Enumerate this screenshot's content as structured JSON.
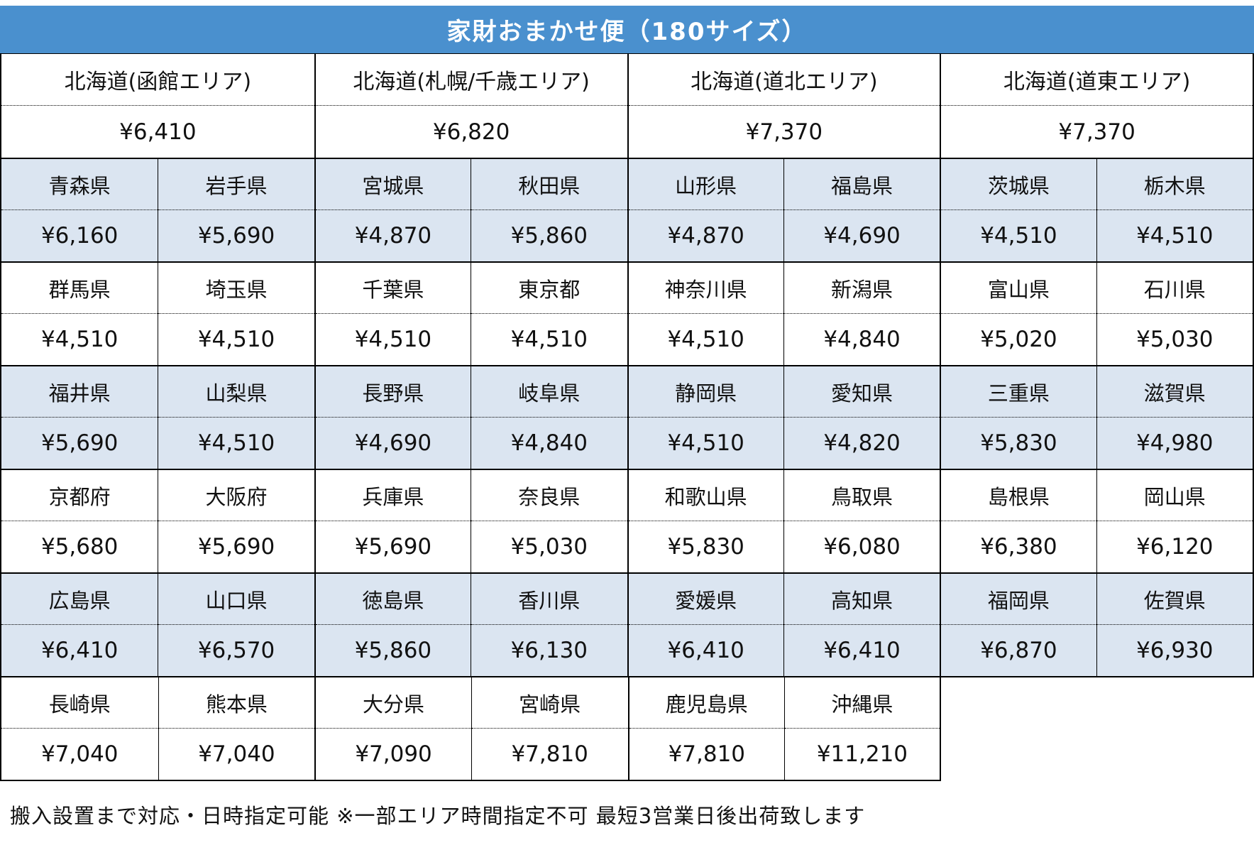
{
  "title": "家財おまかせ便（180サイズ）",
  "hokkaido_row": [
    {
      "name": "北海道(函館エリア)",
      "price": "¥6,410"
    },
    {
      "name": "北海道(札幌/千歳エリア)",
      "price": "¥6,820"
    },
    {
      "name": "北海道(道北エリア)",
      "price": "¥7,370"
    },
    {
      "name": "北海道(道東エリア)",
      "price": "¥7,370"
    }
  ],
  "bands": [
    {
      "shaded": true,
      "cells": [
        {
          "name": "青森県",
          "price": "¥6,160"
        },
        {
          "name": "岩手県",
          "price": "¥5,690"
        },
        {
          "name": "宮城県",
          "price": "¥4,870"
        },
        {
          "name": "秋田県",
          "price": "¥5,860"
        },
        {
          "name": "山形県",
          "price": "¥4,870"
        },
        {
          "name": "福島県",
          "price": "¥4,690"
        },
        {
          "name": "茨城県",
          "price": "¥4,510"
        },
        {
          "name": "栃木県",
          "price": "¥4,510"
        }
      ]
    },
    {
      "shaded": false,
      "cells": [
        {
          "name": "群馬県",
          "price": "¥4,510"
        },
        {
          "name": "埼玉県",
          "price": "¥4,510"
        },
        {
          "name": "千葉県",
          "price": "¥4,510"
        },
        {
          "name": "東京都",
          "price": "¥4,510"
        },
        {
          "name": "神奈川県",
          "price": "¥4,510"
        },
        {
          "name": "新潟県",
          "price": "¥4,840"
        },
        {
          "name": "富山県",
          "price": "¥5,020"
        },
        {
          "name": "石川県",
          "price": "¥5,030"
        }
      ]
    },
    {
      "shaded": true,
      "cells": [
        {
          "name": "福井県",
          "price": "¥5,690"
        },
        {
          "name": "山梨県",
          "price": "¥4,510"
        },
        {
          "name": "長野県",
          "price": "¥4,690"
        },
        {
          "name": "岐阜県",
          "price": "¥4,840"
        },
        {
          "name": "静岡県",
          "price": "¥4,510"
        },
        {
          "name": "愛知県",
          "price": "¥4,820"
        },
        {
          "name": "三重県",
          "price": "¥5,830"
        },
        {
          "name": "滋賀県",
          "price": "¥4,980"
        }
      ]
    },
    {
      "shaded": false,
      "cells": [
        {
          "name": "京都府",
          "price": "¥5,680"
        },
        {
          "name": "大阪府",
          "price": "¥5,690"
        },
        {
          "name": "兵庫県",
          "price": "¥5,690"
        },
        {
          "name": "奈良県",
          "price": "¥5,030"
        },
        {
          "name": "和歌山県",
          "price": "¥5,830"
        },
        {
          "name": "鳥取県",
          "price": "¥6,080"
        },
        {
          "name": "島根県",
          "price": "¥6,380"
        },
        {
          "name": "岡山県",
          "price": "¥6,120"
        }
      ]
    },
    {
      "shaded": true,
      "cells": [
        {
          "name": "広島県",
          "price": "¥6,410"
        },
        {
          "name": "山口県",
          "price": "¥6,570"
        },
        {
          "name": "徳島県",
          "price": "¥5,860"
        },
        {
          "name": "香川県",
          "price": "¥6,130"
        },
        {
          "name": "愛媛県",
          "price": "¥6,410"
        },
        {
          "name": "高知県",
          "price": "¥6,410"
        },
        {
          "name": "福岡県",
          "price": "¥6,870"
        },
        {
          "name": "佐賀県",
          "price": "¥6,930"
        }
      ]
    },
    {
      "shaded": false,
      "cells": [
        {
          "name": "長崎県",
          "price": "¥7,040"
        },
        {
          "name": "熊本県",
          "price": "¥7,040"
        },
        {
          "name": "大分県",
          "price": "¥7,090"
        },
        {
          "name": "宮崎県",
          "price": "¥7,810"
        },
        {
          "name": "鹿児島県",
          "price": "¥7,810"
        },
        {
          "name": "沖縄県",
          "price": "¥11,210"
        }
      ]
    }
  ],
  "footer": "搬入設置まで対応・日時指定可能 ※一部エリア時間指定不可 最短3営業日後出荷致します",
  "colors": {
    "header_bg": "#4a90ce",
    "shaded_bg": "#dbe5f1",
    "border": "#000000",
    "header_text": "#ffffff"
  }
}
